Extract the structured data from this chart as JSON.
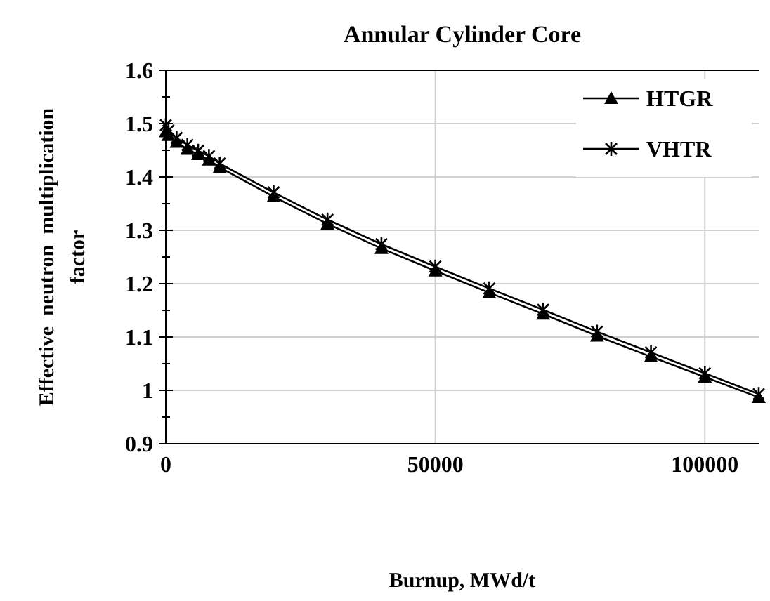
{
  "chart_data": {
    "type": "line",
    "title": "Annular Cylinder Core",
    "xlabel": "Burnup, MWd/t",
    "ylabel": "Effective  neutron  multiplication factor",
    "x": [
      0,
      500,
      2000,
      4000,
      6000,
      8000,
      10000,
      20000,
      30000,
      40000,
      50000,
      60000,
      70000,
      80000,
      90000,
      100000,
      110000
    ],
    "series": [
      {
        "name": "HTGR",
        "color": "#000000",
        "marker": "triangle",
        "values": [
          1.485,
          1.478,
          1.465,
          1.452,
          1.442,
          1.432,
          1.418,
          1.363,
          1.312,
          1.266,
          1.224,
          1.183,
          1.143,
          1.102,
          1.063,
          1.025,
          0.987
        ]
      },
      {
        "name": "VHTR",
        "color": "#000000",
        "marker": "cross",
        "values": [
          1.497,
          1.487,
          1.473,
          1.46,
          1.449,
          1.439,
          1.425,
          1.371,
          1.32,
          1.274,
          1.232,
          1.191,
          1.151,
          1.11,
          1.071,
          1.032,
          0.993
        ]
      }
    ],
    "xlim": [
      0,
      110000
    ],
    "xticks": [
      0,
      50000,
      100000
    ],
    "ylim": [
      0.9,
      1.6
    ],
    "yticks": [
      0.9,
      1,
      1.1,
      1.2,
      1.3,
      1.4,
      1.5,
      1.6
    ],
    "grid": true,
    "legend": "top right",
    "line_style": "solid"
  }
}
